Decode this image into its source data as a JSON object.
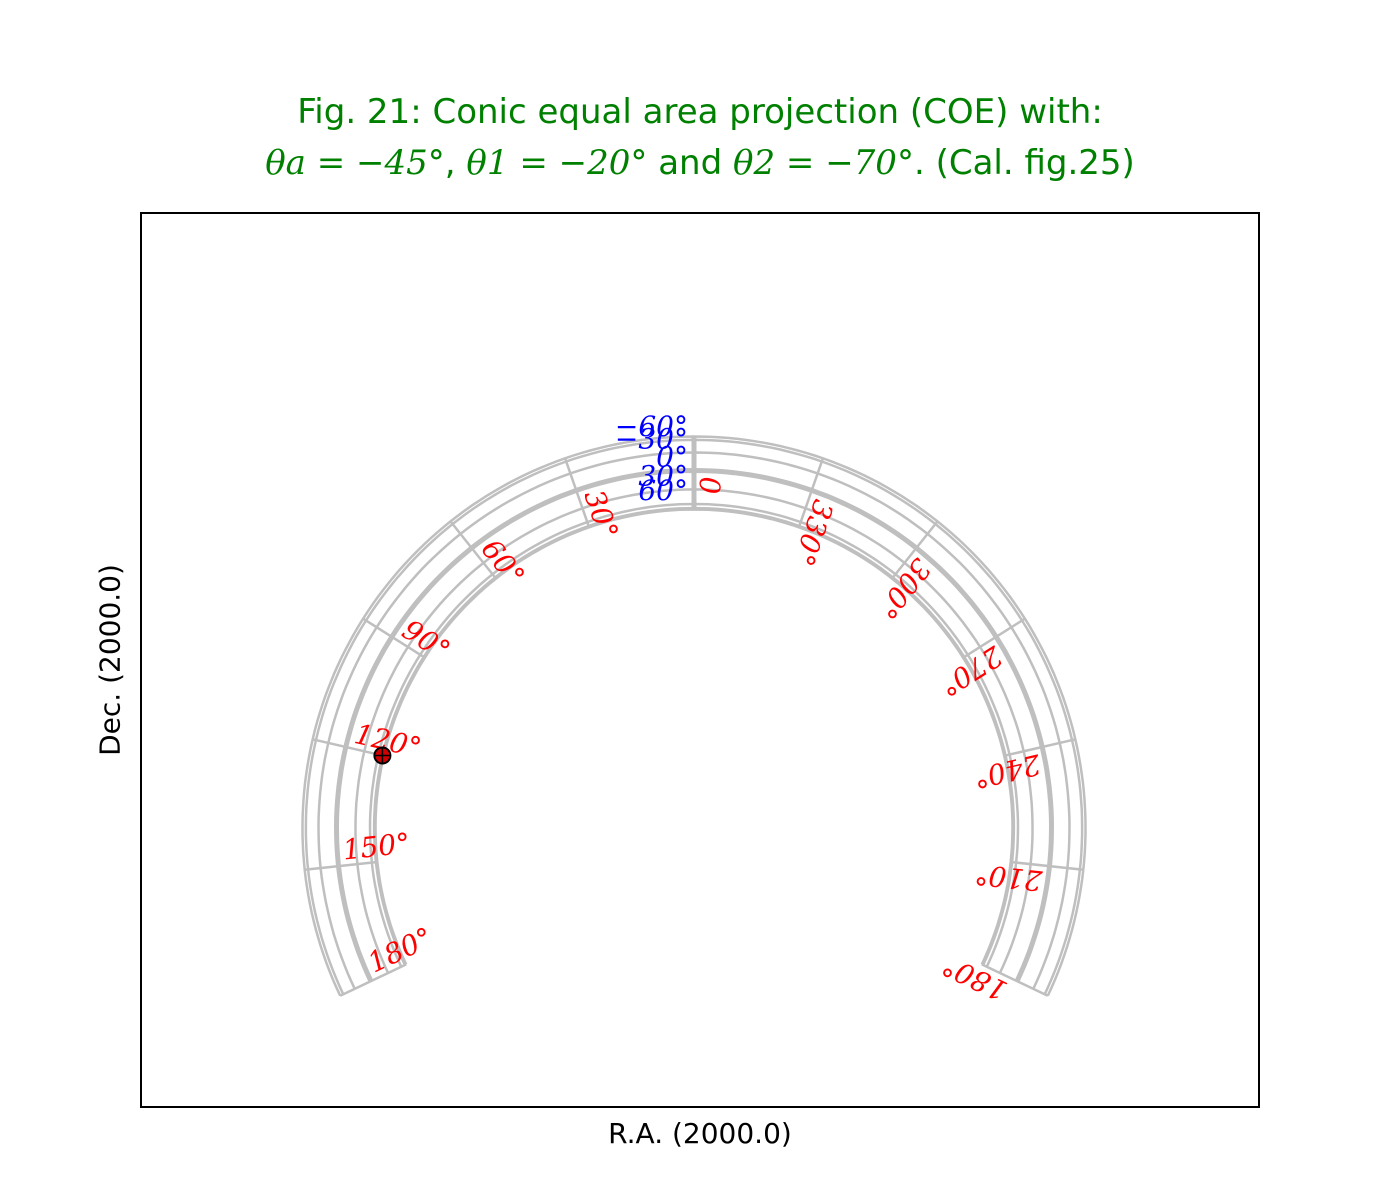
{
  "figure": {
    "title_line1": "Fig. 21: Conic equal area projection (COE) with:",
    "title_line2": {
      "theta_a": "θa = −45°",
      "sep1": ", ",
      "theta_1": "θ1 = −20°",
      "sep2": " and ",
      "theta_2": "θ2 = −70°",
      "suffix": ". (Cal. fig.25)"
    },
    "xlabel": "R.A. (2000.0)",
    "ylabel": "Dec. (2000.0)"
  },
  "colors": {
    "title": "#008000",
    "graticule": "#bfbfbf",
    "ra_labels": "#ff0000",
    "dec_labels": "#0000ff",
    "marker_fill": "#d00000",
    "frame": "#000000"
  },
  "projection": {
    "type": "COE",
    "theta_a": -45,
    "theta_1": -20,
    "theta_2": -70
  },
  "ra_lines": [
    180,
    150,
    120,
    90,
    60,
    30,
    0,
    330,
    300,
    270,
    240,
    210,
    180
  ],
  "ra_labels": [
    {
      "text": "180°",
      "lon": 180,
      "side": "left"
    },
    {
      "text": "150°",
      "lon": 150,
      "side": "left"
    },
    {
      "text": "120°",
      "lon": 120,
      "side": "left"
    },
    {
      "text": "90°",
      "lon": 90,
      "side": "left"
    },
    {
      "text": "60°",
      "lon": 60,
      "side": "left"
    },
    {
      "text": "30°",
      "lon": 30,
      "side": "left"
    },
    {
      "text": "0",
      "lon": 0,
      "side": "left"
    },
    {
      "text": "330°",
      "lon": 330,
      "side": "right"
    },
    {
      "text": "300°",
      "lon": 300,
      "side": "right"
    },
    {
      "text": "270°",
      "lon": 270,
      "side": "right"
    },
    {
      "text": "240°",
      "lon": 240,
      "side": "right"
    },
    {
      "text": "210°",
      "lon": 210,
      "side": "right"
    },
    {
      "text": "180°",
      "lon": 180,
      "side": "right"
    }
  ],
  "dec_lines": [
    -75,
    -60,
    -30,
    0,
    30,
    60,
    75,
    90
  ],
  "dec_labels": [
    {
      "text": "60°",
      "lat": 60
    },
    {
      "text": "30°",
      "lat": 30
    },
    {
      "text": "0°",
      "lat": 0
    },
    {
      "text": "−30°",
      "lat": -30
    },
    {
      "text": "−60°",
      "lat": -60
    }
  ],
  "marker": {
    "lon": 120,
    "lat": 75
  }
}
